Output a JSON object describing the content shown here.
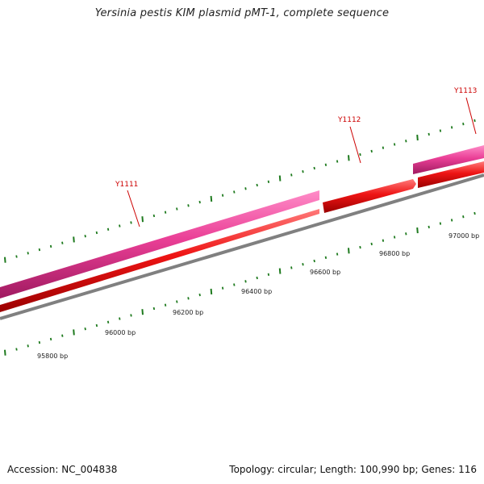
{
  "title": "Yersinia pestis KIM plasmid pMT-1, complete sequence",
  "footer": {
    "accession": "Accession: NC_004838",
    "stats": "Topology: circular; Length: 100,990 bp; Genes: 116"
  },
  "colors": {
    "backbone": "#808080",
    "forward_strand": "#e8308a",
    "reverse_strand": "#e01010",
    "ticks": "#1e7a1e",
    "gene_label": "#cc0000"
  },
  "scale": {
    "unit": "bp",
    "position_labels": [
      "95800 bp",
      "96000 bp",
      "96200 bp",
      "96400 bp",
      "96600 bp",
      "96800 bp",
      "97000 bp"
    ]
  },
  "genes": [
    {
      "name": "Y1111"
    },
    {
      "name": "Y1112"
    },
    {
      "name": "Y1113"
    }
  ]
}
